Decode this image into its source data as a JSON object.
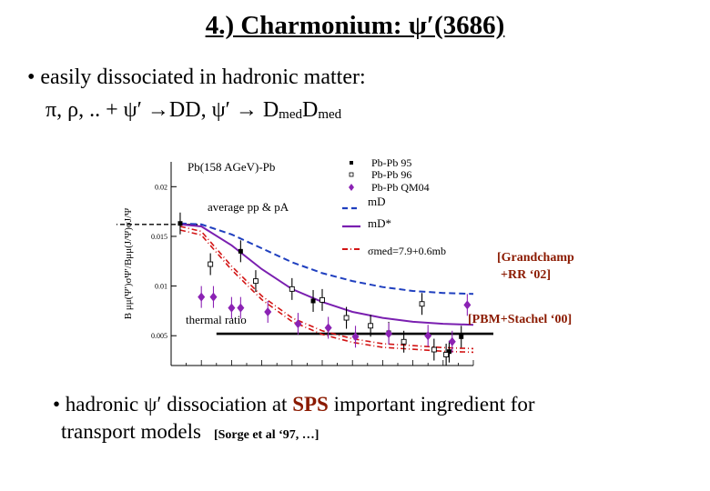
{
  "slide": {
    "title_prefix": "4.) Charmonium: ",
    "title_psi": "ψ′",
    "title_suffix": "(3686) ",
    "bullet1": "• easily dissociated in hadronic matter:",
    "line2_a": "π, ρ, .. + ψ′ →DD,   ψ′ → D",
    "line2_sub1": "med",
    "line2_b": "D",
    "line2_sub2": "med",
    "note_grandchamp_1": "[Grandchamp",
    "note_grandchamp_2": "+RR ‘02]",
    "note_pbm": "[PBM+Stachel ‘00]",
    "bullet2_a": "• hadronic ψ′ dissociation at ",
    "bullet2_sps": "SPS",
    "bullet2_b": " important ingredient for",
    "line4": "transport models",
    "line4_ref": "[Sorge et al ‘97, …]"
  },
  "chart_data": {
    "type": "scatter",
    "title": "Pb(158 AGeV)-Pb",
    "ylabel": "B μμ(Ψ′)σΨ′/Bμμ(J/Ψ)σJ/Ψ",
    "yticks": [
      "0.02",
      "0.015",
      "0.01",
      "0.005"
    ],
    "ylim": [
      0.002,
      0.0225
    ],
    "xlim": [
      0,
      10
    ],
    "legend_position": "top-right",
    "legend": {
      "pbpb95": "Pb-Pb 95",
      "pbpb96": "Pb-Pb 96",
      "pbpbqm04": "Pb-Pb QM04",
      "mD": "mD",
      "mDstar": "mD*",
      "sigma": "σmed=7.9+0.6mb"
    },
    "annotations": {
      "average": "average pp & pA",
      "thermal": "thermal ratio"
    },
    "average_value": 0.0162,
    "thermal_value": 0.0052,
    "colors": {
      "data_qm04": "#8b22b4",
      "mD": "#1f3fbf",
      "mDstar": "#7a1fb0",
      "sigma": "#d21414",
      "dark": "#000000"
    },
    "series": [
      {
        "name": "Pb-Pb 95",
        "marker": "filled-square",
        "x": [
          0.3,
          2.3,
          4.7,
          7.2,
          9.2,
          9.6
        ],
        "y": [
          0.0163,
          0.0135,
          0.0085,
          0.0053,
          0.0034,
          0.0049
        ]
      },
      {
        "name": "Pb-Pb 96",
        "marker": "open-square",
        "x": [
          1.3,
          2.8,
          4.0,
          5.0,
          5.8,
          6.6,
          7.7,
          8.3,
          8.7,
          9.1
        ],
        "y": [
          0.0122,
          0.0105,
          0.0097,
          0.0086,
          0.0068,
          0.006,
          0.0044,
          0.0082,
          0.0036,
          0.0031
        ]
      },
      {
        "name": "Pb-Pb QM04",
        "marker": "filled-diamond",
        "x": [
          1.0,
          1.4,
          2.0,
          2.3,
          3.2,
          4.2,
          5.2,
          6.1,
          7.2,
          8.5,
          9.3,
          9.8
        ],
        "y": [
          0.0089,
          0.0089,
          0.0078,
          0.0078,
          0.0074,
          0.0062,
          0.0058,
          0.0049,
          0.0052,
          0.005,
          0.0044,
          0.0081
        ]
      },
      {
        "name": "mD",
        "line": "dashed",
        "x": [
          0.3,
          1,
          2,
          3,
          4,
          5,
          6,
          7,
          8,
          9,
          10
        ],
        "y": [
          0.0163,
          0.0162,
          0.0152,
          0.0138,
          0.0124,
          0.0113,
          0.0105,
          0.0099,
          0.0095,
          0.0093,
          0.0092
        ]
      },
      {
        "name": "mD*",
        "line": "solid",
        "x": [
          0.3,
          1,
          2,
          3,
          4,
          5,
          6,
          7,
          8,
          9,
          10
        ],
        "y": [
          0.0162,
          0.016,
          0.0141,
          0.0117,
          0.0097,
          0.0084,
          0.0074,
          0.0068,
          0.0064,
          0.0062,
          0.0061
        ]
      },
      {
        "name": "σmed=7.9+0.6mb",
        "line": "dash-dot",
        "x": [
          0.3,
          1,
          2,
          3,
          4,
          5,
          6,
          7,
          8,
          9,
          10
        ],
        "y": [
          0.016,
          0.0155,
          0.012,
          0.009,
          0.0068,
          0.0055,
          0.0047,
          0.0042,
          0.004,
          0.0038,
          0.0037
        ]
      }
    ]
  }
}
